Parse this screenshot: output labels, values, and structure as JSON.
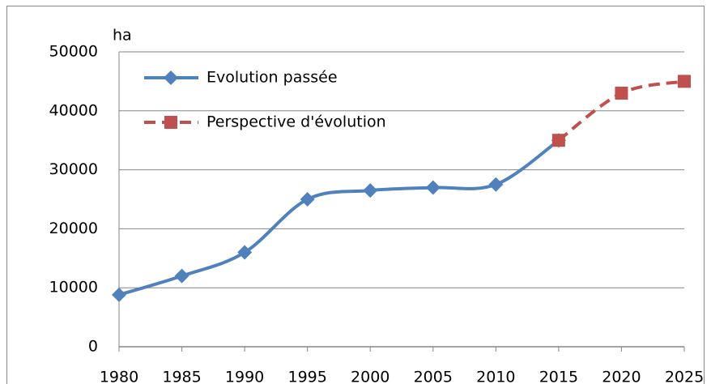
{
  "chart_data": {
    "type": "line",
    "y_label": "ha",
    "x": [
      1980,
      1985,
      1990,
      1995,
      2000,
      2005,
      2010,
      2015,
      2020,
      2025
    ],
    "series": [
      {
        "name": "Evolution passée",
        "color": "#4f81bd",
        "marker": "diamond",
        "dashed": false,
        "values": [
          8800,
          12000,
          16000,
          25000,
          26500,
          27000,
          27500,
          35000,
          null,
          null
        ]
      },
      {
        "name": "Perspective d'évolution",
        "color": "#c0504d",
        "marker": "square",
        "dashed": true,
        "values": [
          null,
          null,
          null,
          null,
          null,
          null,
          null,
          35000,
          43000,
          45000
        ]
      }
    ],
    "xlim": [
      1980,
      2025
    ],
    "xticks": [
      1980,
      1985,
      1990,
      1995,
      2000,
      2005,
      2010,
      2015,
      2020,
      2025
    ],
    "ylim": [
      0,
      50000
    ],
    "yticks": [
      0,
      10000,
      20000,
      30000,
      40000,
      50000
    ],
    "grid": true,
    "legend": "upper left",
    "smooth": true
  }
}
